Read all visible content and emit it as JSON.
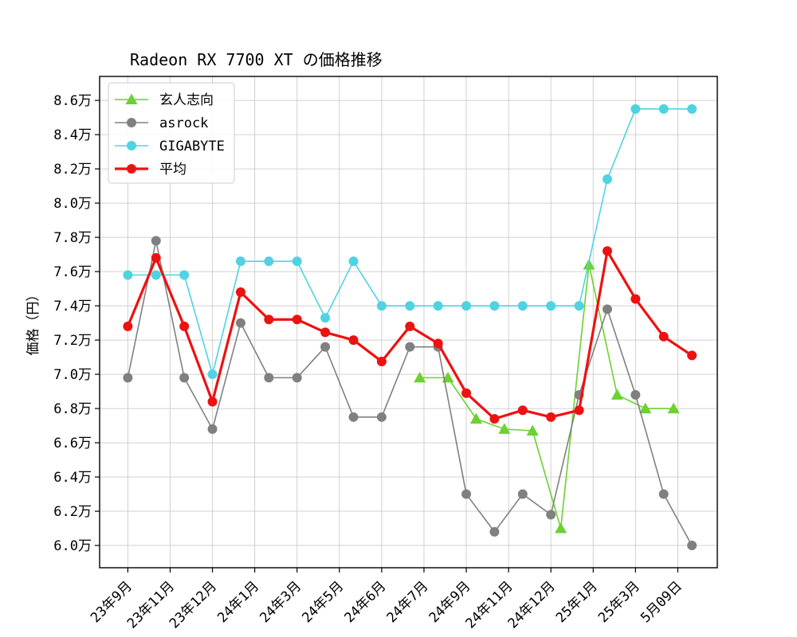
{
  "chart_data": {
    "type": "line",
    "title": "Radeon RX 7700 XT の価格推移",
    "xlabel": "",
    "ylabel": "価格（円）",
    "ylim": [
      58700,
      87400
    ],
    "yticks": [
      60000,
      62000,
      64000,
      66000,
      68000,
      70000,
      72000,
      74000,
      76000,
      78000,
      80000,
      82000,
      84000,
      86000
    ],
    "ytick_labels": [
      "6.0万",
      "6.2万",
      "6.4万",
      "6.6万",
      "6.8万",
      "7.0万",
      "7.2万",
      "7.4万",
      "7.6万",
      "7.8万",
      "8.0万",
      "8.2万",
      "8.4万",
      "8.6万"
    ],
    "x_tick_labels": [
      "23年9月",
      "23年11月",
      "23年12月",
      "24年1月",
      "24年3月",
      "24年5月",
      "24年6月",
      "24年7月",
      "24年9月",
      "24年11月",
      "24年12月",
      "25年1月",
      "25年3月",
      "5月09日"
    ],
    "grid": true,
    "legend_position": "top-left",
    "series": [
      {
        "name": "玄人志向",
        "color": "#6dd12f",
        "marker": "triangle",
        "points": [
          [
            11.35,
            69800
          ],
          [
            12.35,
            69800
          ],
          [
            13.35,
            67400
          ],
          [
            14.35,
            66800
          ],
          [
            15.35,
            66700
          ],
          [
            16.35,
            61000
          ],
          [
            17.35,
            76400
          ],
          [
            18.35,
            68800
          ],
          [
            19.35,
            68000
          ],
          [
            20.35,
            68000
          ]
        ]
      },
      {
        "name": "asrock",
        "color": "#808080",
        "marker": "circle",
        "points": [
          [
            1,
            69800
          ],
          [
            2,
            77800
          ],
          [
            3,
            69800
          ],
          [
            4,
            66800
          ],
          [
            5,
            73000
          ],
          [
            6,
            69800
          ],
          [
            7,
            69800
          ],
          [
            8,
            71600
          ],
          [
            9,
            67500
          ],
          [
            10,
            67500
          ],
          [
            11,
            71600
          ],
          [
            12,
            71600
          ],
          [
            13,
            63000
          ],
          [
            14,
            60800
          ],
          [
            15,
            63000
          ],
          [
            16,
            61800
          ],
          [
            17,
            68800
          ],
          [
            18,
            73800
          ],
          [
            19,
            68800
          ],
          [
            20,
            63000
          ],
          [
            21,
            60000
          ]
        ]
      },
      {
        "name": "GIGABYTE",
        "color": "#4fd3e2",
        "marker": "circle",
        "points": [
          [
            1,
            75800
          ],
          [
            2,
            75800
          ],
          [
            3,
            75800
          ],
          [
            4,
            70000
          ],
          [
            5,
            76600
          ],
          [
            6,
            76600
          ],
          [
            7,
            76600
          ],
          [
            8,
            73300
          ],
          [
            9,
            76600
          ],
          [
            10,
            74000
          ],
          [
            11,
            74000
          ],
          [
            12,
            74000
          ],
          [
            13,
            74000
          ],
          [
            14,
            74000
          ],
          [
            15,
            74000
          ],
          [
            16,
            74000
          ],
          [
            17,
            74000
          ],
          [
            18,
            81400
          ],
          [
            19,
            85500
          ],
          [
            20,
            85500
          ],
          [
            21,
            85500
          ]
        ]
      },
      {
        "name": "平均",
        "color": "#ee1111",
        "marker": "circle",
        "points": [
          [
            1,
            72800
          ],
          [
            2,
            76800
          ],
          [
            3,
            72800
          ],
          [
            4,
            68400
          ],
          [
            5,
            74800
          ],
          [
            6,
            73200
          ],
          [
            7,
            73200
          ],
          [
            8,
            72450
          ],
          [
            9,
            72000
          ],
          [
            10,
            70750
          ],
          [
            11,
            72800
          ],
          [
            12,
            71800
          ],
          [
            13,
            68900
          ],
          [
            14,
            67400
          ],
          [
            15,
            67900
          ],
          [
            16,
            67500
          ],
          [
            17,
            67900
          ],
          [
            18,
            77200
          ],
          [
            19,
            74400
          ],
          [
            20,
            72200
          ],
          [
            21,
            71100
          ]
        ]
      }
    ]
  }
}
